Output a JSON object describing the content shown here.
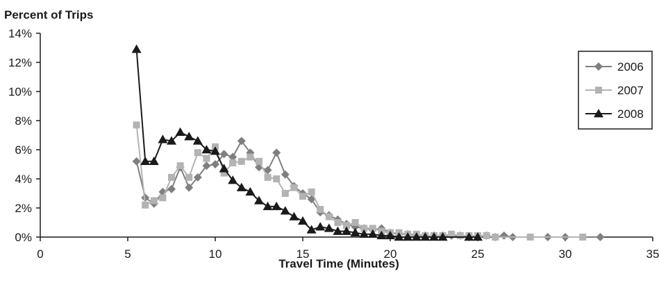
{
  "chart_data": {
    "type": "line",
    "ylabel": "Percent of Trips",
    "xlabel": "Travel Time (Minutes)",
    "xlim": [
      0,
      35
    ],
    "ylim": [
      0,
      14
    ],
    "x_ticks": [
      0,
      5,
      10,
      15,
      20,
      25,
      30,
      35
    ],
    "y_ticks": [
      0,
      2,
      4,
      6,
      8,
      10,
      12,
      14
    ],
    "y_tick_suffix": "%",
    "grid": false,
    "legend_position": "top-right",
    "series": [
      {
        "name": "2006",
        "color": "#7f7f7f",
        "marker": "diamond",
        "points": [
          [
            5.5,
            5.2
          ],
          [
            6,
            2.7
          ],
          [
            6.5,
            2.3
          ],
          [
            7,
            3.1
          ],
          [
            7.5,
            3.3
          ],
          [
            8,
            4.8
          ],
          [
            8.5,
            3.4
          ],
          [
            9,
            4.1
          ],
          [
            9.5,
            4.9
          ],
          [
            10,
            5.0
          ],
          [
            10.5,
            5.7
          ],
          [
            11,
            5.5
          ],
          [
            11.5,
            6.6
          ],
          [
            12,
            5.8
          ],
          [
            12.5,
            4.8
          ],
          [
            13,
            4.6
          ],
          [
            13.5,
            5.8
          ],
          [
            14,
            4.3
          ],
          [
            14.5,
            3.5
          ],
          [
            15,
            3.0
          ],
          [
            15.5,
            2.6
          ],
          [
            16,
            1.7
          ],
          [
            16.5,
            1.5
          ],
          [
            17,
            1.2
          ],
          [
            17.5,
            0.9
          ],
          [
            18,
            0.7
          ],
          [
            18.5,
            0.6
          ],
          [
            19,
            0.5
          ],
          [
            19.5,
            0.6
          ],
          [
            20,
            0.3
          ],
          [
            20.5,
            0.2
          ],
          [
            21,
            0.2
          ],
          [
            21.5,
            0.1
          ],
          [
            22,
            0.1
          ],
          [
            22.5,
            0.1
          ],
          [
            23,
            0.1
          ],
          [
            23.5,
            0.1
          ],
          [
            24,
            0.1
          ],
          [
            24.5,
            0.0
          ],
          [
            25,
            0.0
          ],
          [
            25.5,
            0.1
          ],
          [
            26,
            0.0
          ],
          [
            26.5,
            0.1
          ],
          [
            27,
            0.0
          ],
          [
            29,
            0.0
          ],
          [
            30,
            0.0
          ],
          [
            32,
            0.0
          ]
        ]
      },
      {
        "name": "2007",
        "color": "#b3b3b3",
        "marker": "square",
        "points": [
          [
            5.5,
            7.7
          ],
          [
            6,
            2.2
          ],
          [
            6.5,
            2.5
          ],
          [
            7,
            2.7
          ],
          [
            7.5,
            4.1
          ],
          [
            8,
            4.9
          ],
          [
            8.5,
            4.1
          ],
          [
            9,
            5.8
          ],
          [
            9.5,
            5.4
          ],
          [
            10,
            6.2
          ],
          [
            10.5,
            4.4
          ],
          [
            11,
            5.1
          ],
          [
            11.5,
            5.2
          ],
          [
            12,
            5.5
          ],
          [
            12.5,
            5.2
          ],
          [
            13,
            4.1
          ],
          [
            13.5,
            4.0
          ],
          [
            14,
            3.0
          ],
          [
            14.5,
            3.4
          ],
          [
            15,
            2.8
          ],
          [
            15.5,
            3.1
          ],
          [
            16,
            1.9
          ],
          [
            16.5,
            1.4
          ],
          [
            17,
            1.0
          ],
          [
            17.5,
            0.8
          ],
          [
            18,
            1.0
          ],
          [
            18.5,
            0.6
          ],
          [
            19,
            0.6
          ],
          [
            19.5,
            0.4
          ],
          [
            20,
            0.3
          ],
          [
            20.5,
            0.3
          ],
          [
            21,
            0.2
          ],
          [
            21.5,
            0.2
          ],
          [
            22,
            0.1
          ],
          [
            22.5,
            0.1
          ],
          [
            23,
            0.1
          ],
          [
            23.5,
            0.2
          ],
          [
            24,
            0.1
          ],
          [
            24.5,
            0.1
          ],
          [
            25,
            0.1
          ],
          [
            25.5,
            0.1
          ],
          [
            26,
            0.0
          ],
          [
            28,
            0.0
          ],
          [
            31,
            0.0
          ]
        ]
      },
      {
        "name": "2008",
        "color": "#1a1a1a",
        "marker": "triangle",
        "points": [
          [
            5.5,
            12.9
          ],
          [
            6,
            5.2
          ],
          [
            6.5,
            5.2
          ],
          [
            7,
            6.7
          ],
          [
            7.5,
            6.6
          ],
          [
            8,
            7.2
          ],
          [
            8.5,
            6.9
          ],
          [
            9,
            6.6
          ],
          [
            9.5,
            6.0
          ],
          [
            10,
            5.9
          ],
          [
            10.5,
            4.7
          ],
          [
            11,
            3.9
          ],
          [
            11.5,
            3.4
          ],
          [
            12,
            3.1
          ],
          [
            12.5,
            2.5
          ],
          [
            13,
            2.1
          ],
          [
            13.5,
            2.1
          ],
          [
            14,
            1.8
          ],
          [
            14.5,
            1.4
          ],
          [
            15,
            1.1
          ],
          [
            15.5,
            0.5
          ],
          [
            16,
            0.7
          ],
          [
            16.5,
            0.6
          ],
          [
            17,
            0.4
          ],
          [
            17.5,
            0.4
          ],
          [
            18,
            0.3
          ],
          [
            18.5,
            0.2
          ],
          [
            19,
            0.2
          ],
          [
            19.5,
            0.1
          ],
          [
            20,
            0.1
          ],
          [
            20.5,
            0.0
          ],
          [
            21,
            0.0
          ],
          [
            21.5,
            0.0
          ],
          [
            22,
            0.0
          ],
          [
            22.5,
            0.0
          ],
          [
            23,
            0.0
          ],
          [
            24.5,
            0.0
          ],
          [
            25,
            0.0
          ]
        ]
      }
    ]
  }
}
